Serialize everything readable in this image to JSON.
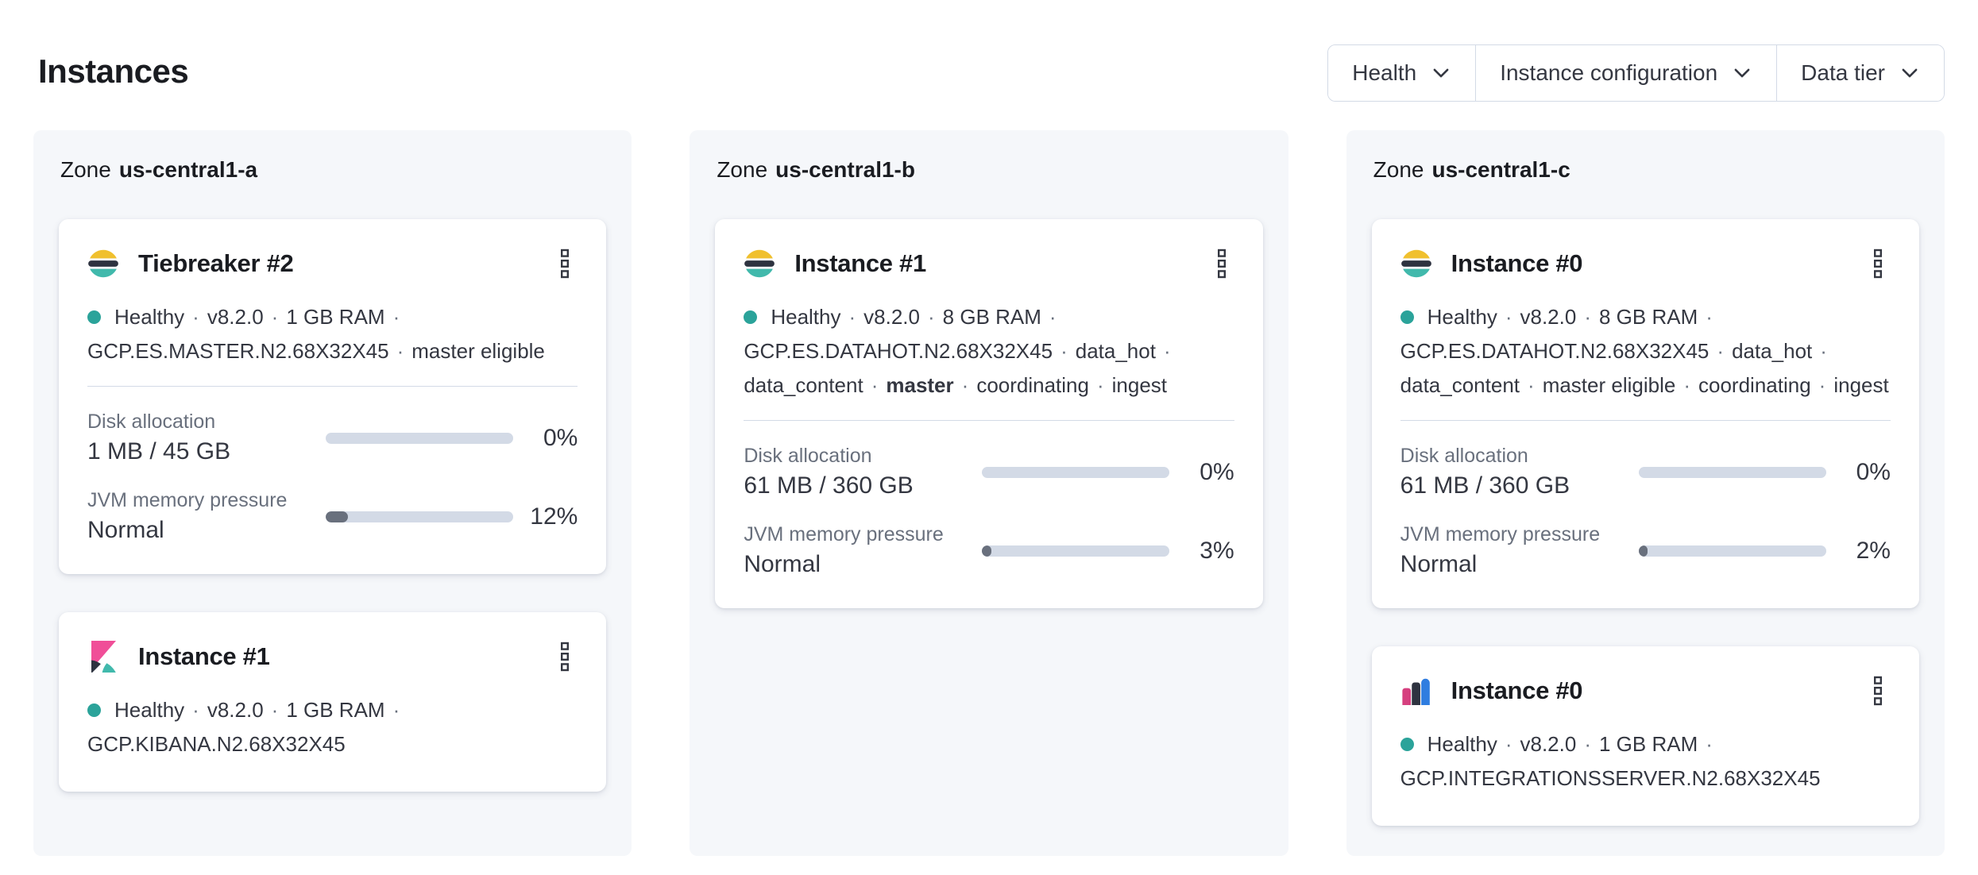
{
  "page": {
    "title": "Instances"
  },
  "labels": {
    "zone_prefix": "Zone"
  },
  "filters": [
    {
      "label": "Health",
      "icon": "chevron-down"
    },
    {
      "label": "Instance configuration",
      "icon": "chevron-down"
    },
    {
      "label": "Data tier",
      "icon": "chevron-down"
    }
  ],
  "icons": {
    "card_menu": "boxes-vertical",
    "health": "health-dot"
  },
  "colors": {
    "panel_background": "#F5F7FA",
    "border": "#D3DAE6",
    "text": "#343741",
    "text_subdued": "#69707D",
    "title_text": "#1A1C21",
    "progress_track": "#D3DAE6",
    "progress_fill": "#69707D",
    "health_dot": "#2BA39A",
    "elastic_yellow": "#F0C02E",
    "elastic_teal": "#41B9AC",
    "dark_navy": "#2E3340",
    "kibana_pink": "#F04E98",
    "bar_pink": "#D6407F",
    "bar_blue": "#2F7DE0"
  },
  "zones": [
    {
      "name": "us-central1-a",
      "cards": [
        {
          "logo": "elasticsearch-logo",
          "title": "Tiebreaker #2",
          "status_lines": [
            [
              "Healthy",
              "·",
              "v8.2.0",
              "·",
              "1 GB RAM",
              "·"
            ],
            [
              "GCP.ES.MASTER.N2.68X32X45",
              "·",
              "master eligible"
            ]
          ],
          "metrics": [
            {
              "label": "Disk allocation",
              "value": "1 MB / 45 GB",
              "percent": 0,
              "percent_label": "0%"
            },
            {
              "label": "JVM memory pressure",
              "value": "Normal",
              "percent": 12,
              "percent_label": "12%"
            }
          ]
        },
        {
          "logo": "kibana-logo",
          "title": "Instance #1",
          "status_lines": [
            [
              "Healthy",
              "·",
              "v8.2.0",
              "·",
              "1 GB RAM",
              "·"
            ],
            [
              "GCP.KIBANA.N2.68X32X45"
            ]
          ],
          "metrics": []
        }
      ]
    },
    {
      "name": "us-central1-b",
      "cards": [
        {
          "logo": "elasticsearch-logo",
          "title": "Instance #1",
          "status_lines": [
            [
              "Healthy",
              "·",
              "v8.2.0",
              "·",
              "8 GB RAM",
              "·"
            ],
            [
              "GCP.ES.DATAHOT.N2.68X32X45",
              "·",
              "data_hot",
              "·"
            ],
            [
              "data_content",
              "·",
              {
                "b": "master"
              },
              "·",
              "coordinating",
              "·",
              "ingest"
            ]
          ],
          "metrics": [
            {
              "label": "Disk allocation",
              "value": "61 MB / 360 GB",
              "percent": 0,
              "percent_label": "0%"
            },
            {
              "label": "JVM memory pressure",
              "value": "Normal",
              "percent": 3,
              "percent_label": "3%"
            }
          ]
        }
      ]
    },
    {
      "name": "us-central1-c",
      "cards": [
        {
          "logo": "elasticsearch-logo",
          "title": "Instance #0",
          "status_lines": [
            [
              "Healthy",
              "·",
              "v8.2.0",
              "·",
              "8 GB RAM",
              "·"
            ],
            [
              "GCP.ES.DATAHOT.N2.68X32X45",
              "·",
              "data_hot",
              "·"
            ],
            [
              "data_content",
              "·",
              "master eligible",
              "·",
              "coordinating",
              "·",
              "ingest"
            ]
          ],
          "metrics": [
            {
              "label": "Disk allocation",
              "value": "61 MB / 360 GB",
              "percent": 0,
              "percent_label": "0%"
            },
            {
              "label": "JVM memory pressure",
              "value": "Normal",
              "percent": 2,
              "percent_label": "2%"
            }
          ]
        },
        {
          "logo": "integrations-server-logo",
          "title": "Instance #0",
          "status_lines": [
            [
              "Healthy",
              "·",
              "v8.2.0",
              "·",
              "1 GB RAM",
              "·"
            ],
            [
              "GCP.INTEGRATIONSSERVER.N2.68X32X45"
            ]
          ],
          "metrics": []
        }
      ]
    }
  ]
}
